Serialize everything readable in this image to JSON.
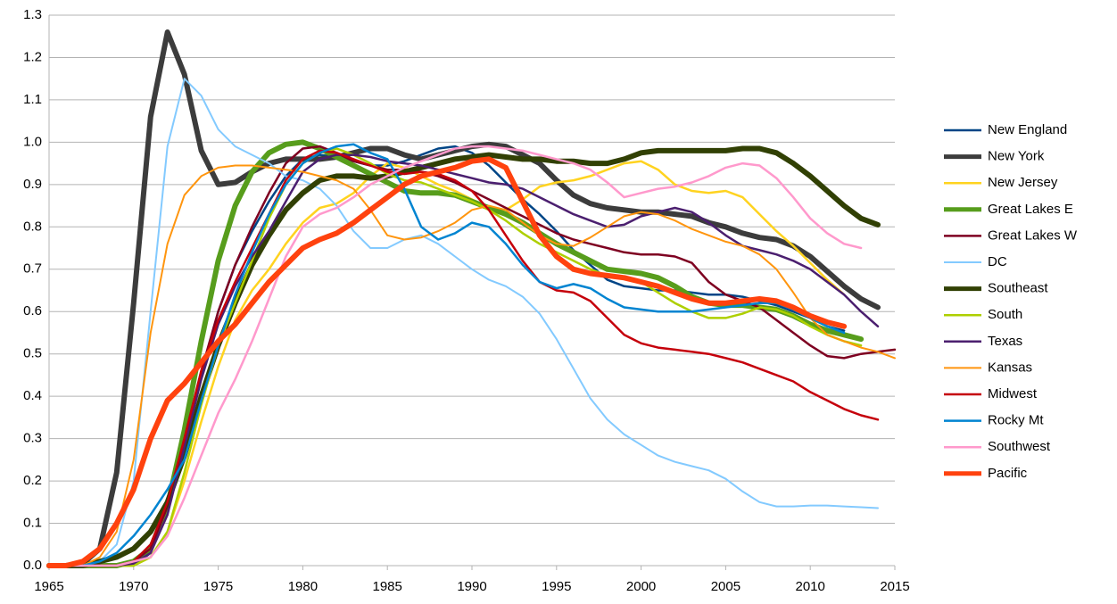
{
  "chart_data": {
    "type": "line",
    "x": [
      1965,
      1966,
      1967,
      1968,
      1969,
      1970,
      1971,
      1972,
      1973,
      1974,
      1975,
      1976,
      1977,
      1978,
      1979,
      1980,
      1981,
      1982,
      1983,
      1984,
      1985,
      1986,
      1987,
      1988,
      1989,
      1990,
      1991,
      1992,
      1993,
      1994,
      1995,
      1996,
      1997,
      1998,
      1999,
      2000,
      2001,
      2002,
      2003,
      2004,
      2005,
      2006,
      2007,
      2008,
      2009,
      2010,
      2011,
      2012,
      2013,
      2014,
      2015
    ],
    "xlim": [
      1965,
      2015
    ],
    "xticks": [
      1965,
      1970,
      1975,
      1980,
      1985,
      1990,
      1995,
      2000,
      2005,
      2010,
      2015
    ],
    "ylim": [
      0,
      1.3
    ],
    "yticks": [
      {
        "value": 0,
        "label": "0.0"
      },
      0.1,
      0.2,
      0.3,
      0.4,
      0.5,
      0.6,
      0.7,
      0.8,
      0.9,
      {
        "value": 1,
        "label": "1.0"
      },
      1.1,
      1.2,
      1.3
    ],
    "grid": true,
    "legend": "right",
    "series": [
      {
        "name": "New England",
        "color": "#004586",
        "line_width": 2.5,
        "values": [
          0,
          0,
          0,
          0,
          0,
          0,
          0.03,
          0.13,
          0.28,
          0.45,
          0.6,
          0.71,
          0.79,
          0.86,
          0.92,
          0.96,
          0.97,
          0.965,
          0.955,
          0.945,
          0.945,
          0.955,
          0.97,
          0.985,
          0.99,
          0.975,
          0.945,
          0.905,
          0.865,
          0.83,
          0.79,
          0.745,
          0.71,
          0.675,
          0.66,
          0.655,
          0.65,
          0.65,
          0.645,
          0.64,
          0.64,
          0.635,
          0.625,
          0.615,
          0.6,
          0.585,
          0.565,
          0.555,
          null,
          null,
          null
        ]
      },
      {
        "name": "New York",
        "color": "#3c3c3c",
        "line_width": 6,
        "values": [
          0,
          0,
          0.005,
          0.04,
          0.22,
          0.62,
          1.06,
          1.26,
          1.16,
          0.98,
          0.9,
          0.905,
          0.93,
          0.95,
          0.96,
          0.96,
          0.96,
          0.965,
          0.975,
          0.985,
          0.985,
          0.97,
          0.96,
          0.97,
          0.98,
          0.99,
          0.995,
          0.99,
          0.97,
          0.95,
          0.91,
          0.875,
          0.855,
          0.845,
          0.84,
          0.835,
          0.835,
          0.83,
          0.825,
          0.81,
          0.8,
          0.785,
          0.775,
          0.77,
          0.755,
          0.73,
          0.695,
          0.66,
          0.63,
          0.61,
          null
        ]
      },
      {
        "name": "New Jersey",
        "color": "#ffd320",
        "line_width": 2.5,
        "values": [
          0,
          0,
          0,
          0,
          0,
          0,
          0.02,
          0.08,
          0.2,
          0.34,
          0.47,
          0.58,
          0.65,
          0.7,
          0.76,
          0.81,
          0.845,
          0.855,
          0.88,
          0.92,
          0.95,
          0.94,
          0.92,
          0.9,
          0.885,
          0.865,
          0.845,
          0.84,
          0.865,
          0.895,
          0.905,
          0.91,
          0.92,
          0.935,
          0.95,
          0.955,
          0.935,
          0.9,
          0.885,
          0.88,
          0.885,
          0.87,
          0.83,
          0.79,
          0.755,
          0.715,
          0.675,
          0.64,
          null,
          null,
          null
        ]
      },
      {
        "name": "Great Lakes E",
        "color": "#579d1c",
        "line_width": 6,
        "values": [
          0,
          0,
          0,
          0,
          0,
          0.01,
          0.04,
          0.14,
          0.32,
          0.53,
          0.72,
          0.85,
          0.93,
          0.975,
          0.995,
          1,
          0.985,
          0.965,
          0.945,
          0.925,
          0.905,
          0.885,
          0.88,
          0.88,
          0.875,
          0.86,
          0.845,
          0.83,
          0.81,
          0.785,
          0.76,
          0.74,
          0.72,
          0.7,
          0.695,
          0.69,
          0.68,
          0.66,
          0.635,
          0.62,
          0.615,
          0.615,
          0.61,
          0.605,
          0.59,
          0.57,
          0.555,
          0.545,
          0.535,
          null,
          null
        ]
      },
      {
        "name": "Great Lakes W",
        "color": "#7e0021",
        "line_width": 2.5,
        "values": [
          0,
          0,
          0,
          0,
          0,
          0.01,
          0.04,
          0.14,
          0.3,
          0.46,
          0.6,
          0.71,
          0.8,
          0.88,
          0.95,
          0.985,
          0.99,
          0.975,
          0.955,
          0.945,
          0.935,
          0.935,
          0.93,
          0.92,
          0.905,
          0.885,
          0.865,
          0.845,
          0.825,
          0.805,
          0.785,
          0.77,
          0.76,
          0.75,
          0.74,
          0.735,
          0.735,
          0.73,
          0.715,
          0.67,
          0.64,
          0.625,
          0.61,
          0.58,
          0.55,
          0.52,
          0.495,
          0.49,
          0.5,
          0.505,
          0.51
        ]
      },
      {
        "name": "DC",
        "color": "#83caff",
        "line_width": 2,
        "values": [
          0,
          0,
          0,
          0.01,
          0.05,
          0.2,
          0.6,
          0.99,
          1.15,
          1.11,
          1.03,
          0.99,
          0.97,
          0.95,
          0.92,
          0.91,
          0.89,
          0.85,
          0.79,
          0.75,
          0.75,
          0.77,
          0.78,
          0.76,
          0.73,
          0.7,
          0.675,
          0.66,
          0.635,
          0.595,
          0.535,
          0.465,
          0.395,
          0.345,
          0.31,
          0.285,
          0.26,
          0.245,
          0.235,
          0.225,
          0.205,
          0.175,
          0.15,
          0.14,
          0.14,
          0.142,
          0.142,
          0.14,
          0.138,
          0.136,
          null
        ]
      },
      {
        "name": "Southeast",
        "color": "#314004",
        "line_width": 6,
        "values": [
          0,
          0,
          0,
          0.01,
          0.02,
          0.04,
          0.08,
          0.15,
          0.26,
          0.4,
          0.52,
          0.62,
          0.71,
          0.78,
          0.84,
          0.88,
          0.91,
          0.92,
          0.92,
          0.915,
          0.92,
          0.93,
          0.94,
          0.95,
          0.96,
          0.965,
          0.97,
          0.965,
          0.96,
          0.96,
          0.955,
          0.955,
          0.95,
          0.95,
          0.96,
          0.975,
          0.98,
          0.98,
          0.98,
          0.98,
          0.98,
          0.985,
          0.985,
          0.975,
          0.95,
          0.92,
          0.885,
          0.85,
          0.82,
          0.805,
          null
        ]
      },
      {
        "name": "South",
        "color": "#aecf00",
        "line_width": 2.5,
        "values": [
          0,
          0,
          0,
          0,
          0,
          0,
          0.02,
          0.08,
          0.22,
          0.38,
          0.52,
          0.62,
          0.72,
          0.82,
          0.9,
          0.95,
          0.975,
          0.985,
          0.97,
          0.95,
          0.925,
          0.91,
          0.905,
          0.89,
          0.875,
          0.86,
          0.84,
          0.815,
          0.785,
          0.76,
          0.74,
          0.72,
          0.7,
          0.685,
          0.68,
          0.67,
          0.645,
          0.62,
          0.6,
          0.585,
          0.585,
          0.595,
          0.61,
          0.605,
          0.59,
          0.565,
          0.545,
          0.53,
          0.52,
          null,
          null
        ]
      },
      {
        "name": "Texas",
        "color": "#4b1f6f",
        "line_width": 2.5,
        "values": [
          0,
          0,
          0,
          0,
          0,
          0.005,
          0.03,
          0.12,
          0.28,
          0.44,
          0.57,
          0.66,
          0.73,
          0.79,
          0.86,
          0.93,
          0.96,
          0.97,
          0.97,
          0.965,
          0.955,
          0.95,
          0.945,
          0.935,
          0.925,
          0.915,
          0.905,
          0.9,
          0.89,
          0.87,
          0.85,
          0.83,
          0.815,
          0.8,
          0.805,
          0.825,
          0.835,
          0.845,
          0.835,
          0.81,
          0.78,
          0.755,
          0.745,
          0.735,
          0.72,
          0.7,
          0.67,
          0.64,
          0.6,
          0.565,
          null
        ]
      },
      {
        "name": "Kansas",
        "color": "#ff950e",
        "line_width": 2,
        "values": [
          0,
          0,
          0,
          0.02,
          0.08,
          0.25,
          0.55,
          0.76,
          0.875,
          0.92,
          0.94,
          0.945,
          0.945,
          0.94,
          0.935,
          0.93,
          0.92,
          0.91,
          0.89,
          0.84,
          0.78,
          0.77,
          0.775,
          0.79,
          0.81,
          0.84,
          0.85,
          0.84,
          0.81,
          0.78,
          0.76,
          0.755,
          0.775,
          0.8,
          0.825,
          0.835,
          0.83,
          0.815,
          0.795,
          0.78,
          0.765,
          0.755,
          0.735,
          0.7,
          0.645,
          0.585,
          0.545,
          0.53,
          0.515,
          0.505,
          0.49
        ]
      },
      {
        "name": "Midwest",
        "color": "#c5000b",
        "line_width": 2.5,
        "values": [
          0,
          0,
          0,
          0,
          0,
          0.01,
          0.05,
          0.15,
          0.3,
          0.46,
          0.58,
          0.67,
          0.75,
          0.83,
          0.91,
          0.96,
          0.98,
          0.975,
          0.96,
          0.945,
          0.93,
          0.925,
          0.93,
          0.925,
          0.91,
          0.885,
          0.84,
          0.78,
          0.72,
          0.67,
          0.65,
          0.645,
          0.625,
          0.585,
          0.545,
          0.525,
          0.515,
          0.51,
          0.505,
          0.5,
          0.49,
          0.48,
          0.465,
          0.45,
          0.435,
          0.41,
          0.39,
          0.37,
          0.355,
          0.345,
          null
        ]
      },
      {
        "name": "Rocky Mt",
        "color": "#0084d1",
        "line_width": 2.5,
        "values": [
          0,
          0,
          0,
          0.01,
          0.03,
          0.07,
          0.12,
          0.18,
          0.25,
          0.39,
          0.52,
          0.64,
          0.74,
          0.83,
          0.9,
          0.95,
          0.975,
          0.99,
          0.995,
          0.975,
          0.96,
          0.89,
          0.8,
          0.77,
          0.785,
          0.81,
          0.8,
          0.76,
          0.71,
          0.67,
          0.655,
          0.665,
          0.655,
          0.63,
          0.61,
          0.605,
          0.6,
          0.6,
          0.6,
          0.605,
          0.61,
          0.615,
          0.62,
          0.62,
          0.605,
          0.585,
          0.565,
          0.55,
          null,
          null,
          null
        ]
      },
      {
        "name": "Southwest",
        "color": "#ff99cc",
        "line_width": 2.5,
        "values": [
          0,
          0,
          0,
          0,
          0,
          0.01,
          0.02,
          0.07,
          0.16,
          0.26,
          0.36,
          0.44,
          0.53,
          0.63,
          0.73,
          0.8,
          0.83,
          0.845,
          0.87,
          0.9,
          0.92,
          0.94,
          0.955,
          0.97,
          0.985,
          0.99,
          0.99,
          0.985,
          0.98,
          0.97,
          0.96,
          0.95,
          0.935,
          0.905,
          0.87,
          0.88,
          0.89,
          0.895,
          0.905,
          0.92,
          0.94,
          0.95,
          0.945,
          0.915,
          0.87,
          0.82,
          0.785,
          0.76,
          0.75,
          null,
          null
        ]
      },
      {
        "name": "Pacific",
        "color": "#ff420e",
        "line_width": 6,
        "values": [
          0,
          0,
          0.01,
          0.04,
          0.1,
          0.18,
          0.3,
          0.39,
          0.43,
          0.48,
          0.53,
          0.57,
          0.62,
          0.67,
          0.71,
          0.75,
          0.77,
          0.785,
          0.81,
          0.84,
          0.87,
          0.9,
          0.92,
          0.93,
          0.94,
          0.955,
          0.96,
          0.94,
          0.86,
          0.78,
          0.73,
          0.7,
          0.69,
          0.685,
          0.68,
          0.67,
          0.66,
          0.645,
          0.63,
          0.62,
          0.62,
          0.625,
          0.63,
          0.625,
          0.61,
          0.59,
          0.575,
          0.565,
          null,
          null,
          null
        ]
      }
    ]
  }
}
